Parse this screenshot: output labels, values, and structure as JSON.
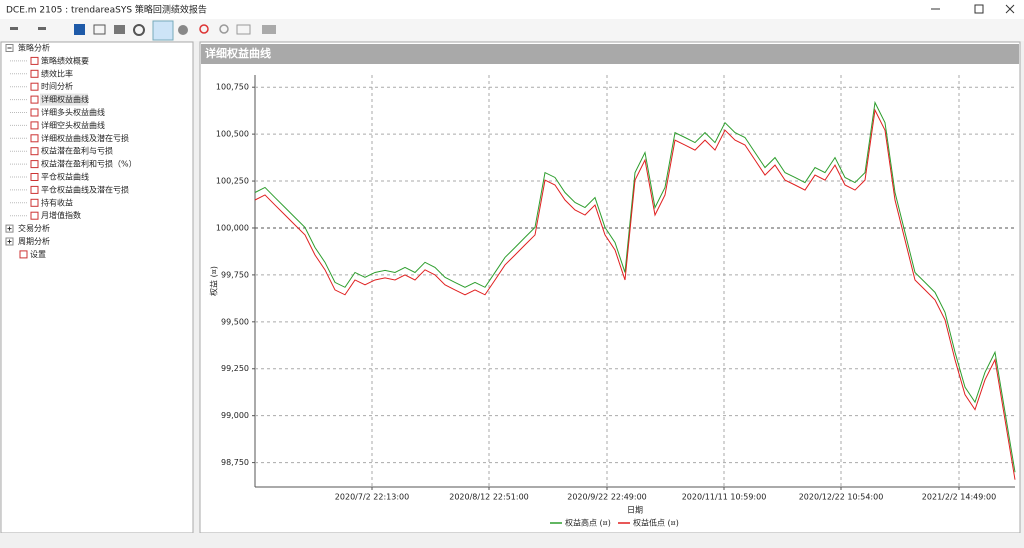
{
  "window": {
    "title": "DCE.m 2105 : trendareaSYS 策略回测绩效报告"
  },
  "tree": {
    "groups": [
      {
        "label": "策略分析",
        "items": [
          "策略绩效概要",
          "绩效比率",
          "时间分析",
          "详细权益曲线",
          "详细多头权益曲线",
          "详细空头权益曲线",
          "详细权益曲线及潜在亏损",
          "权益潜在盈利与亏损",
          "权益潜在盈利和亏损（%）",
          "平仓权益曲线",
          "平仓权益曲线及潜在亏损",
          "持有收益",
          "月增值指数"
        ]
      },
      {
        "label": "交易分析",
        "items": []
      },
      {
        "label": "周期分析",
        "items": []
      },
      {
        "label": "设置",
        "items": []
      }
    ],
    "selected": "详细权益曲线"
  },
  "panel": {
    "title": "详细权益曲线"
  },
  "chart_data": {
    "type": "line",
    "x_label": "日期",
    "y_label": "权益 (¤)",
    "x": [
      0,
      1,
      2,
      3,
      4,
      5,
      6,
      7,
      8,
      9,
      10,
      11,
      12,
      13,
      14,
      15,
      16,
      17,
      18,
      19,
      20,
      21,
      22,
      23,
      24,
      25,
      26,
      27,
      28,
      29,
      30,
      31,
      32,
      33,
      34,
      35,
      36,
      37,
      38,
      39,
      40,
      41,
      42,
      43,
      44,
      45,
      46,
      47,
      48,
      49,
      50,
      51,
      52,
      53,
      54,
      55,
      56,
      57,
      58,
      59,
      60,
      61,
      62,
      63,
      64,
      65,
      66,
      67,
      68,
      69,
      70,
      71,
      72,
      73,
      74,
      75,
      76
    ],
    "series": [
      {
        "name": "权益高点 (¤)",
        "color": "#2e9e2e",
        "values": [
          100189,
          100216,
          100162,
          100109,
          100056,
          100003,
          99896,
          99817,
          99710,
          99684,
          99763,
          99737,
          99763,
          99774,
          99763,
          99790,
          99763,
          99817,
          99790,
          99737,
          99710,
          99684,
          99710,
          99684,
          99763,
          99843,
          99896,
          99950,
          100003,
          100295,
          100269,
          100189,
          100136,
          100109,
          100162,
          100003,
          99923,
          99763,
          100295,
          100402,
          100109,
          100216,
          100508,
          100482,
          100455,
          100508,
          100455,
          100561,
          100508,
          100482,
          100402,
          100322,
          100375,
          100295,
          100269,
          100242,
          100322,
          100295,
          100375,
          100269,
          100242,
          100295,
          100668,
          100561,
          100189,
          99976,
          99763,
          99710,
          99657,
          99551,
          99338,
          99152,
          99072,
          99231,
          99338,
          99019,
          98699
        ]
      },
      {
        "name": "权益低点 (¤)",
        "color": "#e02020",
        "values": [
          100149,
          100176,
          100122,
          100069,
          100016,
          99963,
          99856,
          99777,
          99670,
          99644,
          99723,
          99697,
          99723,
          99734,
          99723,
          99750,
          99723,
          99777,
          99750,
          99697,
          99670,
          99644,
          99670,
          99644,
          99723,
          99803,
          99856,
          99910,
          99963,
          100255,
          100229,
          100149,
          100096,
          100069,
          100122,
          99963,
          99883,
          99723,
          100255,
          100362,
          100069,
          100176,
          100468,
          100442,
          100415,
          100468,
          100415,
          100521,
          100468,
          100442,
          100362,
          100282,
          100335,
          100255,
          100229,
          100202,
          100282,
          100255,
          100335,
          100229,
          100202,
          100255,
          100628,
          100521,
          100149,
          99936,
          99723,
          99670,
          99617,
          99511,
          99298,
          99112,
          99032,
          99191,
          99298,
          98979,
          98659
        ]
      }
    ],
    "xlim": [
      0,
      76
    ],
    "xticks": [
      {
        "value": 11.7,
        "label": "2020/7/2 22:13:00"
      },
      {
        "value": 23.4,
        "label": "2020/8/12 22:51:00"
      },
      {
        "value": 35.2,
        "label": "2020/9/22 22:49:00"
      },
      {
        "value": 46.9,
        "label": "2020/11/11 10:59:00"
      },
      {
        "value": 58.6,
        "label": "2020/12/22 10:54:00"
      },
      {
        "value": 70.4,
        "label": "2021/2/2 14:49:00"
      }
    ],
    "ylim": [
      98620,
      100815
    ],
    "yticks": [
      {
        "value": 98750,
        "label": "98,750"
      },
      {
        "value": 99000,
        "label": "99,000"
      },
      {
        "value": 99250,
        "label": "99,250"
      },
      {
        "value": 99500,
        "label": "99,500"
      },
      {
        "value": 99750,
        "label": "99,750"
      },
      {
        "value": 100000,
        "label": "100,000"
      },
      {
        "value": 100250,
        "label": "100,250"
      },
      {
        "value": 100500,
        "label": "100,500"
      },
      {
        "value": 100750,
        "label": "100,750"
      }
    ],
    "grid": true,
    "legend": "bottom"
  }
}
